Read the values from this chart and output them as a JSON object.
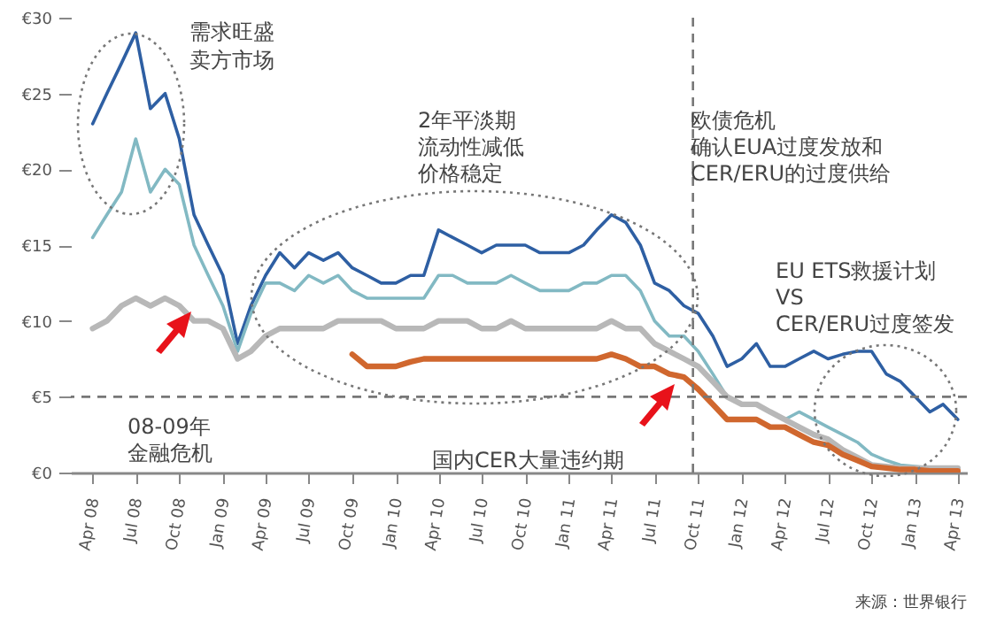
{
  "chart_data": {
    "type": "line",
    "x": [
      "2008-04",
      "2008-05",
      "2008-06",
      "2008-07",
      "2008-08",
      "2008-09",
      "2008-10",
      "2008-11",
      "2008-12",
      "2009-01",
      "2009-02",
      "2009-03",
      "2009-04",
      "2009-05",
      "2009-06",
      "2009-07",
      "2009-08",
      "2009-09",
      "2009-10",
      "2009-11",
      "2009-12",
      "2010-01",
      "2010-02",
      "2010-03",
      "2010-04",
      "2010-05",
      "2010-06",
      "2010-07",
      "2010-08",
      "2010-09",
      "2010-10",
      "2010-11",
      "2010-12",
      "2011-01",
      "2011-02",
      "2011-03",
      "2011-04",
      "2011-05",
      "2011-06",
      "2011-07",
      "2011-08",
      "2011-09",
      "2011-10",
      "2011-11",
      "2011-12",
      "2012-01",
      "2012-02",
      "2012-03",
      "2012-04",
      "2012-05",
      "2012-06",
      "2012-07",
      "2012-08",
      "2012-09",
      "2012-10",
      "2012-11",
      "2012-12",
      "2013-01",
      "2013-02",
      "2013-03",
      "2013-04"
    ],
    "series": [
      {
        "color": "#2e5fa3",
        "values": [
          23,
          25,
          27,
          29,
          24,
          25,
          22,
          17,
          15,
          13,
          8.5,
          11,
          13,
          14.5,
          13.5,
          14.5,
          14,
          14.5,
          13.5,
          13,
          12.5,
          12.5,
          13,
          13,
          16,
          15.5,
          15,
          14.5,
          15,
          15,
          15,
          14.5,
          14.5,
          14.5,
          15,
          16,
          17,
          16.5,
          15,
          12.5,
          12,
          11,
          10.5,
          9,
          7,
          7.5,
          8.5,
          7,
          7,
          7.5,
          8,
          7.5,
          7.8,
          8,
          8,
          6.5,
          6,
          5,
          4,
          4.5,
          3.5
        ]
      },
      {
        "color": "#82b9c3",
        "values": [
          15.5,
          17,
          18.5,
          22,
          18.5,
          20,
          19,
          15,
          13,
          11,
          8,
          10.5,
          12.5,
          12.5,
          12,
          13,
          12.5,
          13,
          12,
          11.5,
          11.5,
          11.5,
          11.5,
          11.5,
          13,
          13,
          12.5,
          12.5,
          12.5,
          13,
          12.5,
          12,
          12,
          12,
          12.5,
          12.5,
          13,
          13,
          12,
          10,
          9,
          9,
          8,
          6.5,
          5,
          4.5,
          4.5,
          4,
          3.5,
          4,
          3.5,
          3,
          2.5,
          2,
          1.2,
          0.8,
          0.5,
          0.4,
          0.3,
          0.3,
          0.3
        ]
      },
      {
        "color": "#b8b8b8",
        "values": [
          9.5,
          10,
          11,
          11.5,
          11,
          11.5,
          11,
          10,
          10,
          9.5,
          7.5,
          8,
          9,
          9.5,
          9.5,
          9.5,
          9.5,
          10,
          10,
          10,
          10,
          9.5,
          9.5,
          9.5,
          10,
          10,
          10,
          9.5,
          9.5,
          10,
          9.5,
          9.5,
          9.5,
          9.5,
          9.5,
          9.5,
          10,
          9.5,
          9.5,
          8.5,
          8,
          7.5,
          7,
          6,
          5,
          4.5,
          4.5,
          4,
          3.5,
          3,
          2.5,
          2.2,
          1.5,
          1,
          0.5,
          0.4,
          0.3,
          0.3,
          0.3,
          0.3,
          0.3
        ]
      },
      {
        "color": "#d0672e",
        "values": [
          null,
          null,
          null,
          null,
          null,
          null,
          null,
          null,
          null,
          null,
          null,
          null,
          null,
          null,
          null,
          null,
          null,
          null,
          7.8,
          7,
          7,
          7,
          7.3,
          7.5,
          7.5,
          7.5,
          7.5,
          7.5,
          7.5,
          7.5,
          7.5,
          7.5,
          7.5,
          7.5,
          7.5,
          7.5,
          7.8,
          7.5,
          7,
          7,
          6.5,
          6.3,
          5.5,
          4.5,
          3.5,
          3.5,
          3.5,
          3,
          3,
          2.5,
          2,
          1.8,
          1.2,
          0.8,
          0.4,
          0.3,
          0.2,
          0.2,
          0.1,
          0.1,
          0.1
        ]
      }
    ],
    "xlim": [
      "2008-02-15",
      "2013-04-20"
    ],
    "xticks": [
      {
        "value": "2008-04",
        "label": "Apr 08"
      },
      {
        "value": "2008-07",
        "label": "Jul 08"
      },
      {
        "value": "2008-10",
        "label": "Oct 08"
      },
      {
        "value": "2009-01",
        "label": "Jan 09"
      },
      {
        "value": "2009-04",
        "label": "Apr 09"
      },
      {
        "value": "2009-07",
        "label": "Jul 09"
      },
      {
        "value": "2009-10",
        "label": "Oct 09"
      },
      {
        "value": "2010-01",
        "label": "Jan 10"
      },
      {
        "value": "2010-04",
        "label": "Apr 10"
      },
      {
        "value": "2010-07",
        "label": "Jul 10"
      },
      {
        "value": "2010-10",
        "label": "Oct 10"
      },
      {
        "value": "2011-01",
        "label": "Jan 11"
      },
      {
        "value": "2011-04",
        "label": "Apr 11"
      },
      {
        "value": "2011-07",
        "label": "Jul 11"
      },
      {
        "value": "2011-10",
        "label": "Oct 11"
      },
      {
        "value": "2012-01",
        "label": "Jan 12"
      },
      {
        "value": "2012-04",
        "label": "Apr 12"
      },
      {
        "value": "2012-07",
        "label": "Jul 12"
      },
      {
        "value": "2012-10",
        "label": "Oct 12"
      },
      {
        "value": "2013-01",
        "label": "Jan 13"
      },
      {
        "value": "2013-04",
        "label": "Apr 13"
      }
    ],
    "ylim": [
      0,
      30
    ],
    "yticks": [
      {
        "value": 0,
        "label": "€0"
      },
      {
        "value": 5,
        "label": "€5"
      },
      {
        "value": 10,
        "label": "€10"
      },
      {
        "value": 15,
        "label": "€15"
      },
      {
        "value": 20,
        "label": "€20"
      },
      {
        "value": 25,
        "label": "€25"
      },
      {
        "value": 30,
        "label": "€30"
      }
    ],
    "ref_lines": [
      {
        "axis": "y",
        "value": 5,
        "color": "#777777",
        "line_style": "dashed"
      },
      {
        "axis": "x",
        "value": "2011-09-20",
        "color": "#777777",
        "line_style": "dashed"
      }
    ],
    "annotations": [
      "需求旺盛",
      "卖方市场",
      "2年平淡期",
      "流动性减低",
      "价格稳定",
      "欧债危机",
      "确认EUA过度发放和",
      "CER/ERU的过度供给",
      "EU ETS救援计划",
      "VS",
      "CER/ERU过度签发",
      "08-09年",
      "金融危机",
      "国内CER大量违约期",
      "来源：世界银行"
    ],
    "grid": false,
    "marker": "none",
    "line_style": "solid"
  }
}
